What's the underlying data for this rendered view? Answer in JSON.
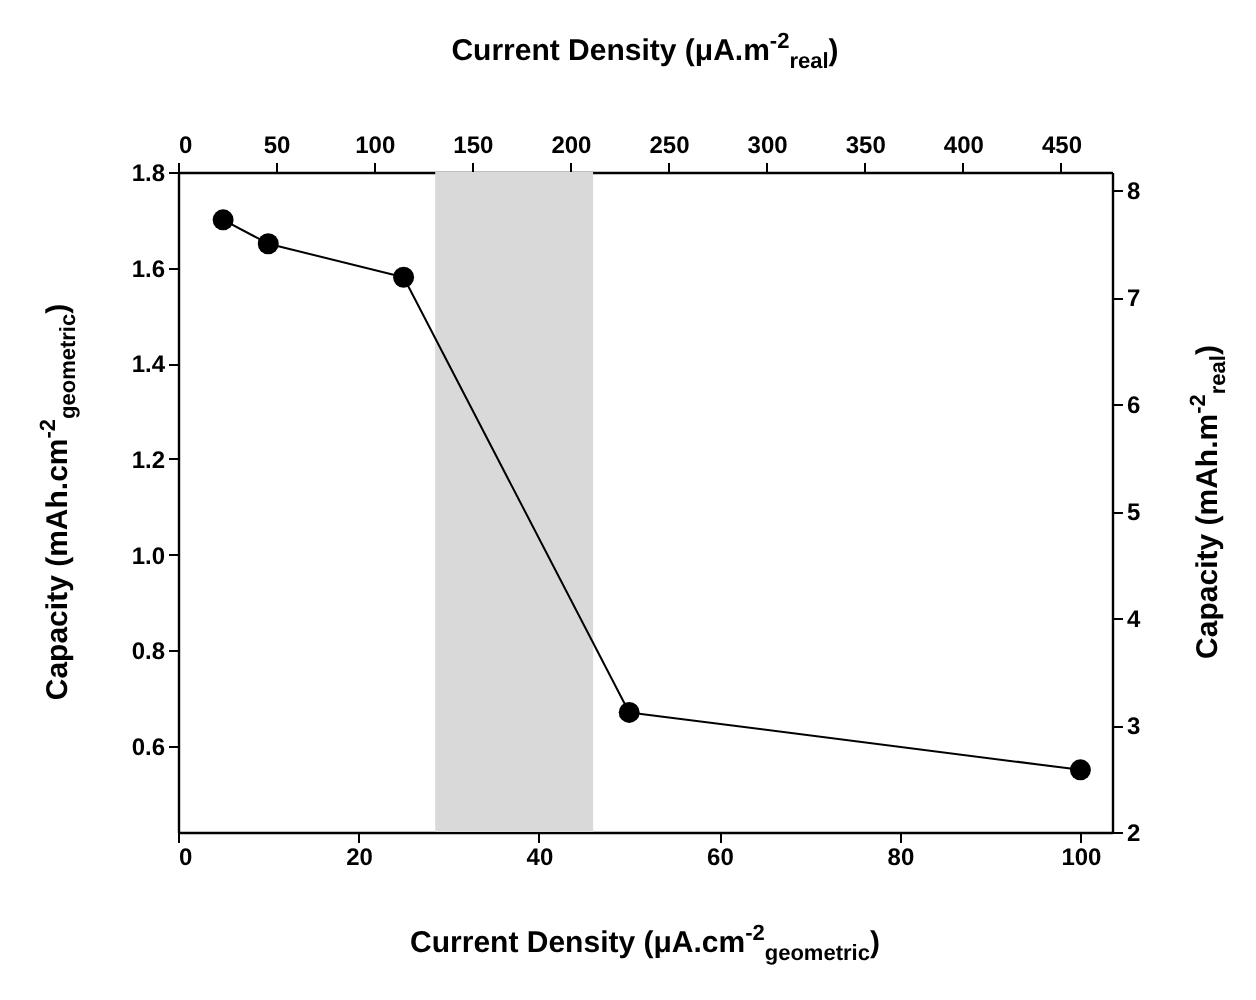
{
  "chart_data": {
    "type": "line",
    "xlabel": "Current Density (μA.cm$^{-2}$$_{geometric}$)",
    "x2label": "Current Density (μA.m$^{-2}$$_{real}$)",
    "ylabel": "Capacity (mAh.cm$^{-2}$$_{geometric}$)",
    "y2label": "Capacity (mAh.m$^{-2}$$_{real}$)",
    "x": [
      5,
      10,
      25,
      50,
      100
    ],
    "series": [
      {
        "color": "#000000",
        "values": [
          1.7,
          1.65,
          1.58,
          0.67,
          0.55
        ]
      }
    ],
    "xlim": [
      0,
      103.5
    ],
    "xticks": [
      0,
      20,
      40,
      60,
      80,
      100
    ],
    "x2lim": [
      0,
      476
    ],
    "x2ticks": [
      0,
      50,
      100,
      150,
      200,
      250,
      300,
      350,
      400,
      450
    ],
    "ylim": [
      0.42,
      1.8
    ],
    "yticks": [
      0.6,
      0.8,
      {
        "value": 1,
        "label": "1.0"
      },
      1.2,
      1.4,
      1.6,
      1.8
    ],
    "y2lim": [
      2,
      8.17
    ],
    "y2ticks": [
      2,
      3,
      4,
      5,
      6,
      7,
      8
    ],
    "bands": [
      {
        "axis": "x",
        "from": 28.5,
        "to": 46,
        "color": "#d9d9d9"
      }
    ],
    "marker": "circle",
    "line_style": "solid",
    "grid": false
  }
}
